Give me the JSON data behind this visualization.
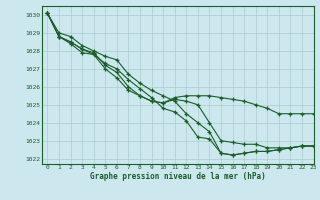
{
  "background_color": "#cce8ee",
  "grid_color": "#aacccc",
  "line_color": "#1a5c2a",
  "xlabel": "Graphe pression niveau de la mer (hPa)",
  "xlim": [
    -0.5,
    23
  ],
  "ylim": [
    1021.7,
    1030.5
  ],
  "yticks": [
    1022,
    1023,
    1024,
    1025,
    1026,
    1027,
    1028,
    1029,
    1030
  ],
  "xticks": [
    0,
    1,
    2,
    3,
    4,
    5,
    6,
    7,
    8,
    9,
    10,
    11,
    12,
    13,
    14,
    15,
    16,
    17,
    18,
    19,
    20,
    21,
    22,
    23
  ],
  "series": [
    [
      1030.1,
      1028.8,
      1028.5,
      1028.1,
      1027.8,
      1027.0,
      1026.5,
      1025.8,
      1025.5,
      1025.2,
      1025.1,
      1025.4,
      1025.5,
      1025.5,
      1025.5,
      1025.4,
      1025.3,
      1025.2,
      1025.0,
      1024.8,
      1024.5,
      1024.5,
      1024.5,
      1024.5
    ],
    [
      1030.1,
      1028.8,
      1028.5,
      1028.1,
      1027.9,
      1027.2,
      1026.8,
      1026.0,
      1025.5,
      1025.2,
      1025.1,
      1025.3,
      1025.2,
      1025.0,
      1024.0,
      1023.0,
      1022.9,
      1022.8,
      1022.8,
      1022.6,
      1022.6,
      1022.6,
      1022.7,
      1022.7
    ],
    [
      1030.1,
      1029.0,
      1028.8,
      1028.3,
      1028.0,
      1027.7,
      1027.5,
      1026.7,
      1026.2,
      1025.8,
      1025.5,
      1025.2,
      1024.5,
      1024.0,
      1023.5,
      1022.3,
      1022.2,
      1022.3,
      1022.4,
      1022.4,
      1022.5,
      1022.6,
      1022.7,
      1022.7
    ],
    [
      1030.1,
      1028.8,
      1028.4,
      1027.9,
      1027.8,
      1027.3,
      1027.0,
      1026.4,
      1025.9,
      1025.4,
      1024.8,
      1024.6,
      1024.1,
      1023.2,
      1023.1,
      1022.3,
      1022.2,
      1022.3,
      1022.4,
      1022.4,
      1022.5,
      1022.6,
      1022.7,
      1022.7
    ]
  ]
}
